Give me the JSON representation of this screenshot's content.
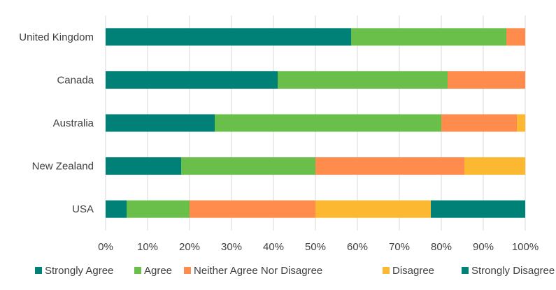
{
  "chart_data": {
    "type": "bar",
    "orientation": "horizontal",
    "stacked": "percent",
    "categories": [
      "United Kingdom",
      "Canada",
      "Australia",
      "New Zealand",
      "USA"
    ],
    "series": [
      {
        "name": "Strongly Agree",
        "color": "#008178",
        "values": [
          58.5,
          41,
          26,
          18,
          5
        ]
      },
      {
        "name": "Agree",
        "color": "#6abf4b",
        "values": [
          37,
          40.5,
          54,
          32,
          15
        ]
      },
      {
        "name": "Neither Agree Nor Disagree",
        "color": "#ff8c4c",
        "values": [
          4.5,
          18.5,
          18,
          35.5,
          30
        ]
      },
      {
        "name": "Disagree",
        "color": "#fbb830",
        "values": [
          0,
          0,
          2,
          14.5,
          27.5
        ]
      },
      {
        "name": "Strongly Disagree",
        "color": "#008178",
        "values": [
          0,
          0,
          0,
          0,
          22.5
        ]
      }
    ],
    "x_ticks": [
      "0%",
      "10%",
      "20%",
      "30%",
      "40%",
      "50%",
      "60%",
      "70%",
      "80%",
      "90%",
      "100%"
    ],
    "xlim": [
      0,
      100
    ],
    "grid": "vertical",
    "legend_position": "bottom"
  }
}
